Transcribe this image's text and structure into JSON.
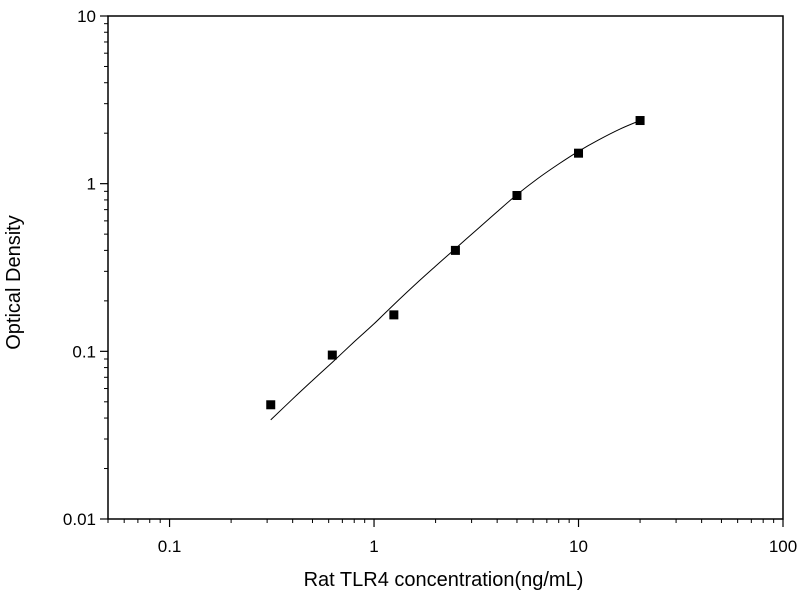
{
  "chart_data": {
    "type": "scatter",
    "title": "",
    "xlabel": "Rat TLR4 concentration(ng/mL)",
    "ylabel": "Optical Density",
    "xscale": "log",
    "yscale": "log",
    "xlim": [
      0.05,
      100
    ],
    "ylim": [
      0.01,
      10
    ],
    "grid": false,
    "legend": "none",
    "x_tick_labels": [
      {
        "value": 0.1,
        "label": "0.1"
      },
      {
        "value": 1,
        "label": "1"
      },
      {
        "value": 10,
        "label": "10"
      },
      {
        "value": 100,
        "label": "100"
      }
    ],
    "y_tick_labels": [
      {
        "value": 0.01,
        "label": "0.01"
      },
      {
        "value": 0.1,
        "label": "0.1"
      },
      {
        "value": 1,
        "label": "1"
      },
      {
        "value": 10,
        "label": "10"
      }
    ],
    "series": [
      {
        "kind": "points",
        "marker": "square",
        "color": "#000000",
        "x": [
          0.3125,
          0.625,
          1.25,
          2.5,
          5,
          10,
          20
        ],
        "y": [
          0.048,
          0.095,
          0.165,
          0.4,
          0.85,
          1.52,
          2.38
        ]
      },
      {
        "kind": "fit-curve",
        "color": "#000000",
        "x": [
          0.3125,
          0.4,
          0.5,
          0.625,
          0.8,
          1.0,
          1.25,
          1.6,
          2.0,
          2.5,
          3.2,
          4.0,
          5.0,
          6.3,
          8.0,
          10.0,
          12.5,
          16.0,
          20.0
        ],
        "y": [
          0.039,
          0.052,
          0.067,
          0.086,
          0.114,
          0.146,
          0.19,
          0.252,
          0.322,
          0.41,
          0.535,
          0.68,
          0.86,
          1.07,
          1.31,
          1.56,
          1.82,
          2.12,
          2.38
        ]
      }
    ]
  }
}
